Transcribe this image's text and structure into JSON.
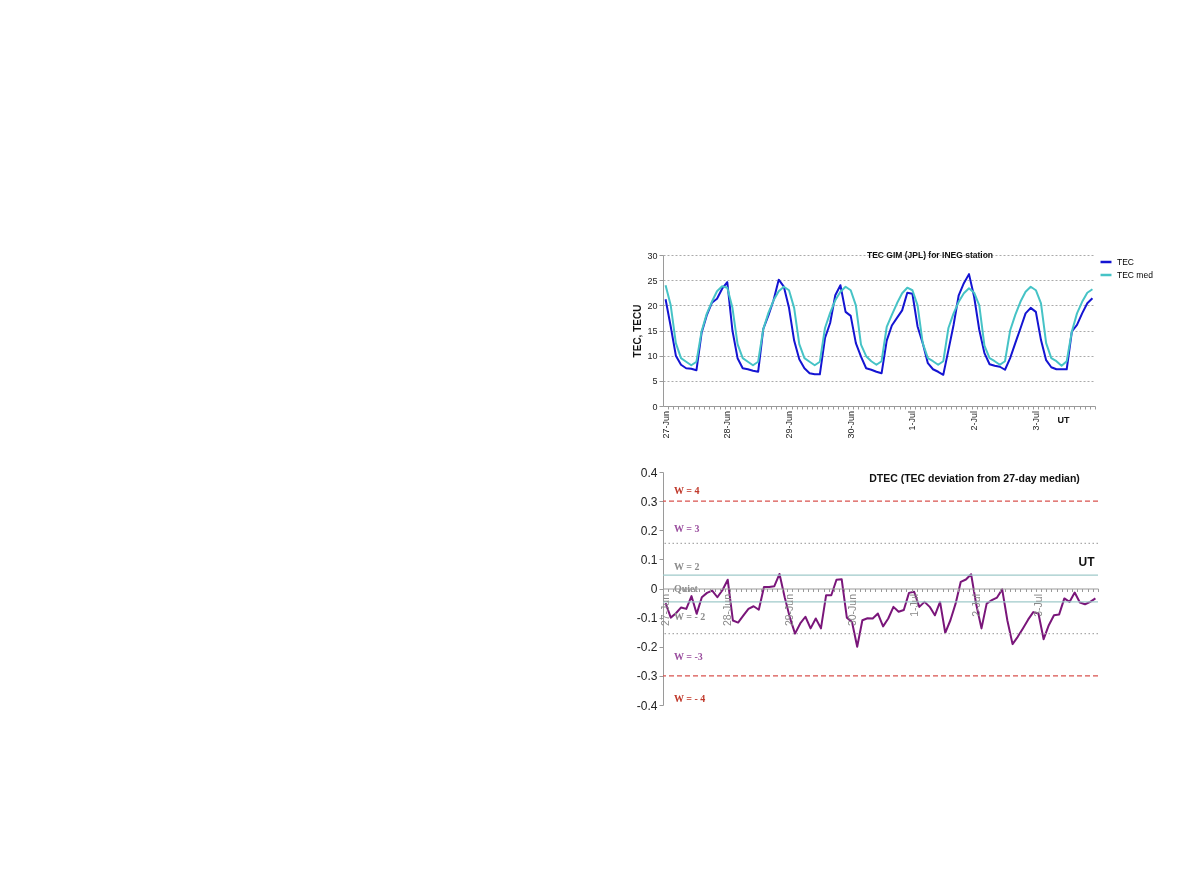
{
  "chart_data": [
    {
      "type": "line",
      "title": "TEC GIM (JPL) for INEG station",
      "xlabel": "UT",
      "ylabel": "TEC, TECU",
      "categories": [
        "27-Jun",
        null,
        null,
        null,
        null,
        null,
        null,
        null,
        null,
        null,
        null,
        null,
        "28-Jun",
        null,
        null,
        null,
        null,
        null,
        null,
        null,
        null,
        null,
        null,
        null,
        "29-Jun",
        null,
        null,
        null,
        null,
        null,
        null,
        null,
        null,
        null,
        null,
        null,
        "30-Jun",
        null,
        null,
        null,
        null,
        null,
        null,
        null,
        null,
        null,
        null,
        null,
        "1-Jul",
        null,
        null,
        null,
        null,
        null,
        null,
        null,
        null,
        null,
        null,
        null,
        "2-Jul",
        null,
        null,
        null,
        null,
        null,
        null,
        null,
        null,
        null,
        null,
        null,
        "3-Jul",
        null,
        null,
        null,
        null,
        null,
        null,
        null,
        null,
        null,
        null,
        null
      ],
      "series": [
        {
          "name": "TEC",
          "color": "#1414d2",
          "values": [
            21.2,
            15.8,
            10.0,
            8.2,
            7.5,
            7.4,
            7.1,
            14.5,
            18.0,
            20.5,
            21.3,
            23.3,
            24.6,
            15.0,
            9.5,
            7.5,
            7.3,
            7.0,
            6.8,
            15.3,
            18.0,
            21.0,
            25.1,
            23.7,
            19.5,
            13.0,
            9.3,
            7.5,
            6.5,
            6.3,
            6.3,
            13.5,
            16.5,
            22.0,
            24.0,
            18.7,
            17.9,
            12.5,
            9.8,
            7.5,
            7.2,
            6.8,
            6.5,
            13.0,
            16.0,
            17.5,
            19.0,
            22.5,
            22.3,
            15.8,
            12.5,
            8.5,
            7.3,
            6.8,
            6.2,
            11.1,
            16.1,
            22.0,
            24.4,
            26.2,
            21.7,
            15.1,
            10.5,
            8.3,
            8.0,
            7.8,
            7.2,
            9.5,
            12.5,
            15.4,
            18.4,
            19.5,
            18.7,
            13.1,
            9.1,
            7.7,
            7.3,
            7.3,
            7.3,
            14.8,
            16.1,
            18.4,
            20.4,
            21.4
          ]
        },
        {
          "name": "TEC med",
          "color": "#46c3c6",
          "values": [
            24.0,
            20.0,
            12.5,
            9.5,
            8.8,
            8.1,
            8.8,
            14.8,
            18.3,
            20.7,
            22.8,
            23.8,
            23.5,
            19.5,
            12.3,
            9.5,
            8.8,
            8.1,
            8.8,
            15.3,
            18.5,
            21.0,
            22.8,
            23.7,
            23.0,
            19.5,
            12.3,
            9.5,
            8.8,
            8.1,
            8.8,
            15.5,
            18.5,
            21.0,
            22.7,
            23.7,
            23.0,
            20.0,
            12.2,
            9.9,
            8.9,
            8.2,
            8.9,
            15.7,
            18.1,
            20.4,
            22.4,
            23.5,
            23.0,
            20.0,
            12.5,
            9.5,
            8.9,
            8.2,
            8.9,
            15.5,
            18.4,
            20.7,
            22.4,
            23.4,
            22.5,
            20.0,
            12.0,
            9.5,
            8.9,
            8.2,
            8.9,
            15.0,
            18.1,
            20.7,
            22.7,
            23.7,
            23.0,
            20.4,
            12.5,
            9.5,
            8.9,
            8.0,
            8.9,
            14.8,
            18.4,
            20.7,
            22.5,
            23.2
          ]
        }
      ],
      "ylim": [
        0,
        30
      ],
      "yticks": [
        0,
        5,
        10,
        15,
        20,
        25,
        30
      ],
      "grid": "y",
      "legend": "right",
      "line_style": "solid",
      "marker": "none"
    },
    {
      "type": "line",
      "title": "DTEC (TEC deviation from 27-day median)",
      "xlabel": "UT",
      "categories": [
        "27-Jun",
        null,
        null,
        null,
        null,
        null,
        null,
        null,
        null,
        null,
        null,
        null,
        "28-Jun",
        null,
        null,
        null,
        null,
        null,
        null,
        null,
        null,
        null,
        null,
        null,
        "29-Jun",
        null,
        null,
        null,
        null,
        null,
        null,
        null,
        null,
        null,
        null,
        null,
        "30-Jun",
        null,
        null,
        null,
        null,
        null,
        null,
        null,
        null,
        null,
        null,
        null,
        "1-Jul",
        null,
        null,
        null,
        null,
        null,
        null,
        null,
        null,
        null,
        null,
        null,
        "2-Jul",
        null,
        null,
        null,
        null,
        null,
        null,
        null,
        null,
        null,
        null,
        null,
        "3-Jul",
        null,
        null,
        null,
        null,
        null,
        null,
        null,
        null,
        null,
        null,
        null
      ],
      "series": [
        {
          "color": "#7a167a",
          "values": [
            -0.05,
            -0.1,
            -0.085,
            -0.065,
            -0.07,
            -0.026,
            -0.087,
            -0.03,
            -0.015,
            -0.007,
            -0.03,
            -0.005,
            0.03,
            -0.11,
            -0.117,
            -0.093,
            -0.07,
            -0.061,
            -0.073,
            0.005,
            0.005,
            0.008,
            0.05,
            -0.03,
            -0.1,
            -0.155,
            -0.12,
            -0.097,
            -0.137,
            -0.103,
            -0.137,
            -0.023,
            -0.023,
            0.03,
            0.032,
            -0.1,
            -0.115,
            -0.2,
            -0.109,
            -0.102,
            -0.103,
            -0.086,
            -0.13,
            -0.103,
            -0.063,
            -0.08,
            -0.074,
            -0.015,
            -0.011,
            -0.063,
            -0.046,
            -0.063,
            -0.092,
            -0.046,
            -0.152,
            -0.109,
            -0.052,
            0.023,
            0.031,
            0.049,
            -0.056,
            -0.137,
            -0.052,
            -0.04,
            -0.031,
            -0.003,
            -0.11,
            -0.191,
            -0.166,
            -0.137,
            -0.107,
            -0.081,
            -0.086,
            -0.174,
            -0.126,
            -0.092,
            -0.089,
            -0.034,
            -0.046,
            -0.014,
            -0.048,
            -0.054,
            -0.046,
            -0.034
          ]
        }
      ],
      "ylim": [
        -0.4,
        0.4
      ],
      "yticks": [
        -0.4,
        -0.3,
        -0.2,
        -0.1,
        0,
        0.1,
        0.2,
        0.3,
        0.4
      ],
      "ref_lines": [
        {
          "axis": "y",
          "value": 0.3,
          "color": "#d9534f",
          "line_style": "dashed"
        },
        {
          "axis": "y",
          "value": -0.3,
          "color": "#d9534f",
          "line_style": "dashed"
        },
        {
          "axis": "y",
          "value": 0.155,
          "color": "#aaaaaa",
          "line_style": "dotted"
        },
        {
          "axis": "y",
          "value": -0.155,
          "color": "#aaaaaa",
          "line_style": "dotted"
        },
        {
          "axis": "y",
          "value": 0.046,
          "color": "#9fcaca",
          "line_style": "solid"
        },
        {
          "axis": "y",
          "value": -0.046,
          "color": "#9fcaca",
          "line_style": "solid"
        }
      ],
      "annotations": [
        "W = 4",
        "W = 3",
        "W = 2",
        "Quiet",
        "W = - 2",
        "W = -3",
        "W = - 4"
      ],
      "grid": false,
      "legend": false,
      "line_style": "solid",
      "marker": "none"
    }
  ]
}
